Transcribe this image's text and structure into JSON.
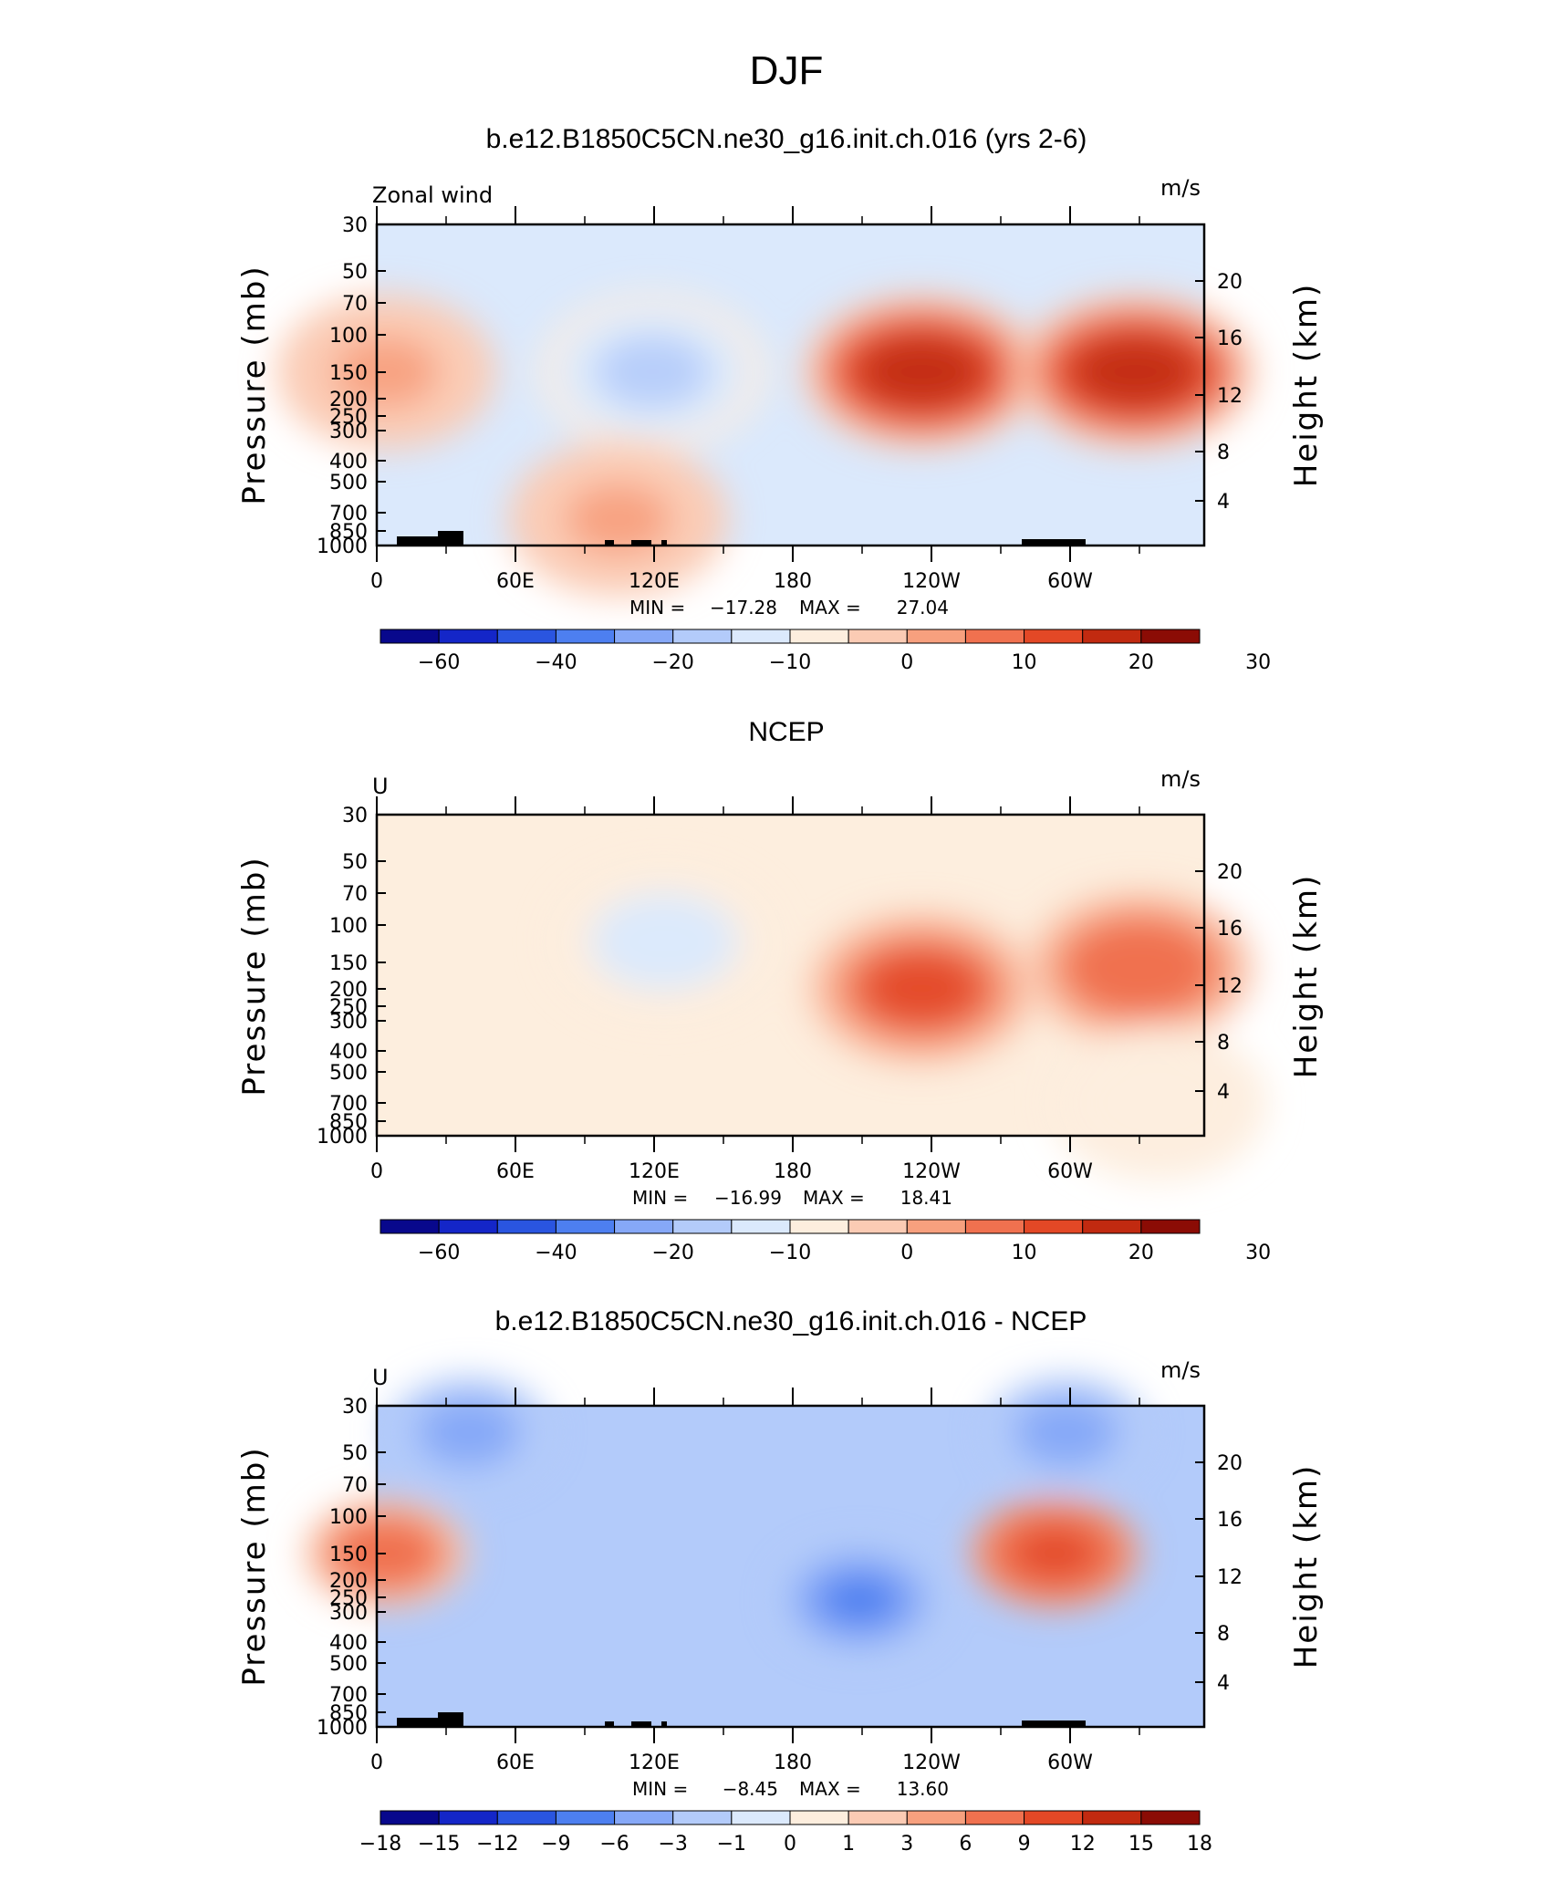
{
  "figure_title": "DJF",
  "colors": {
    "scale": [
      "#08088c",
      "#1426c8",
      "#2a55e0",
      "#4d7ff0",
      "#86a8f7",
      "#b3cbfa",
      "#dbe9fc",
      "#fdeede",
      "#fbcbb4",
      "#f7a07e",
      "#f0714f",
      "#e34826",
      "#c12a10",
      "#8b0c05"
    ],
    "topography": "#000000"
  },
  "chart_data": [
    {
      "type": "heatmap",
      "title": "b.e12.B1850C5CN.ne30_g16.init.ch.016 (yrs 2-6)",
      "left_label": "Zonal wind",
      "units": "m/s",
      "xlabel": "",
      "ylabel": "Pressure (mb)",
      "y2label": "Height (km)",
      "x_tick_labels": [
        "0",
        "60E",
        "120E",
        "180",
        "120W",
        "60W"
      ],
      "y_tick_labels": [
        "30",
        "50",
        "70",
        "100",
        "150",
        "200",
        "250",
        "300",
        "400",
        "500",
        "700",
        "850",
        "1000"
      ],
      "y2_tick_labels": [
        "20",
        "16",
        "12",
        "8",
        "4"
      ],
      "stats": {
        "min_label": "MIN =",
        "min": "−17.28",
        "max_label": "MAX =",
        "max": "27.04"
      },
      "colorbar_labels": [
        "−60",
        "−40",
        "−20",
        "−10",
        "0",
        "10",
        "20",
        "30"
      ],
      "features": [
        {
          "lon": 120,
          "p": 150,
          "value": -15
        },
        {
          "lon": 237,
          "p": 150,
          "value": 26
        },
        {
          "lon": 330,
          "p": 150,
          "value": 27
        },
        {
          "lon": 105,
          "p": 750,
          "value": 8
        },
        {
          "lon": 0,
          "p": 150,
          "value": 8
        }
      ]
    },
    {
      "type": "heatmap",
      "title": "NCEP",
      "left_label": "U",
      "units": "m/s",
      "xlabel": "",
      "ylabel": "Pressure (mb)",
      "y2label": "Height (km)",
      "x_tick_labels": [
        "0",
        "60E",
        "120E",
        "180",
        "120W",
        "60W"
      ],
      "y_tick_labels": [
        "30",
        "50",
        "70",
        "100",
        "150",
        "200",
        "250",
        "300",
        "400",
        "500",
        "700",
        "850",
        "1000"
      ],
      "y2_tick_labels": [
        "20",
        "16",
        "12",
        "8",
        "4"
      ],
      "stats": {
        "min_label": "MIN =",
        "min": "−16.99",
        "max_label": "MAX =",
        "max": "18.41"
      },
      "colorbar_labels": [
        "−60",
        "−40",
        "−20",
        "−10",
        "0",
        "10",
        "20",
        "30"
      ],
      "features": [
        {
          "lon": 125,
          "p": 120,
          "value": -14
        },
        {
          "lon": 237,
          "p": 200,
          "value": 18
        },
        {
          "lon": 332,
          "p": 160,
          "value": 17
        },
        {
          "lon": 340,
          "p": 700,
          "value": -6
        }
      ]
    },
    {
      "type": "heatmap",
      "title": "b.e12.B1850C5CN.ne30_g16.init.ch.016 - NCEP",
      "left_label": "U",
      "units": "m/s",
      "xlabel": "",
      "ylabel": "Pressure (mb)",
      "y2label": "Height (km)",
      "x_tick_labels": [
        "0",
        "60E",
        "120E",
        "180",
        "120W",
        "60W"
      ],
      "y_tick_labels": [
        "30",
        "50",
        "70",
        "100",
        "150",
        "200",
        "250",
        "300",
        "400",
        "500",
        "700",
        "850",
        "1000"
      ],
      "y2_tick_labels": [
        "20",
        "16",
        "12",
        "8",
        "4"
      ],
      "stats": {
        "min_label": "MIN =",
        "min": "−8.45",
        "max_label": "MAX =",
        "max": "13.60"
      },
      "colorbar_labels": [
        "−18",
        "−15",
        "−12",
        "−9",
        "−6",
        "−3",
        "−1",
        "0",
        "1",
        "3",
        "6",
        "9",
        "12",
        "15",
        "18"
      ],
      "features": [
        {
          "lon": 210,
          "p": 250,
          "value": -8
        },
        {
          "lon": 295,
          "p": 150,
          "value": 13
        },
        {
          "lon": 0,
          "p": 150,
          "value": 9
        },
        {
          "lon": 40,
          "p": 40,
          "value": -6
        },
        {
          "lon": 300,
          "p": 40,
          "value": -6
        }
      ]
    }
  ]
}
